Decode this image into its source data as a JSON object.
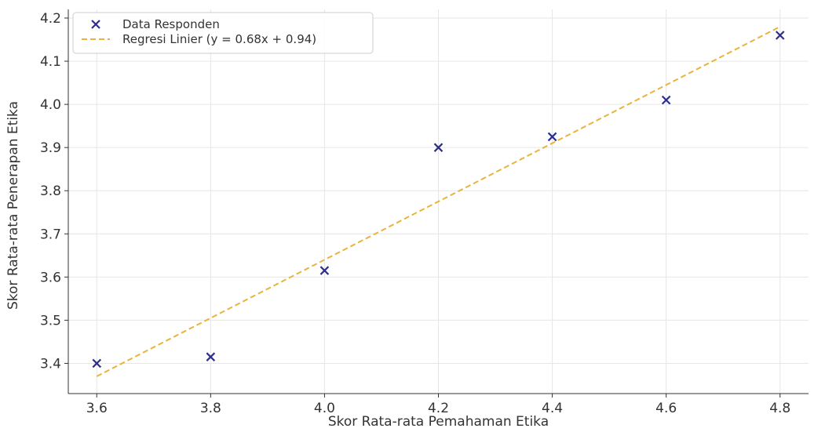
{
  "chart_data": {
    "type": "scatter",
    "xlabel": "Skor Rata-rata Pemahaman Etika",
    "ylabel": "Skor Rata-rata Penerapan Etika",
    "xlim": [
      3.55,
      4.85
    ],
    "ylim": [
      3.33,
      4.22
    ],
    "xticks": [
      "3.6",
      "3.8",
      "4.0",
      "4.2",
      "4.4",
      "4.6",
      "4.8"
    ],
    "yticks": [
      "3.4",
      "3.5",
      "3.6",
      "3.7",
      "3.8",
      "3.9",
      "4.0",
      "4.1",
      "4.2"
    ],
    "grid": true,
    "legend_position": "top-left",
    "series": [
      {
        "name": "Data Responden",
        "kind": "scatter",
        "marker": "x",
        "color": "#2e2e8a",
        "x": [
          3.6,
          3.8,
          4.0,
          4.2,
          4.4,
          4.6,
          4.8
        ],
        "y": [
          3.4,
          3.415,
          3.615,
          3.9,
          3.925,
          4.01,
          4.16
        ]
      },
      {
        "name": "Regresi Linier (y = 0.68x + 0.94)",
        "kind": "line",
        "style": "dashed",
        "color": "#e8b43c",
        "x": [
          3.6,
          4.8
        ],
        "y": [
          3.37,
          4.18
        ]
      }
    ]
  }
}
